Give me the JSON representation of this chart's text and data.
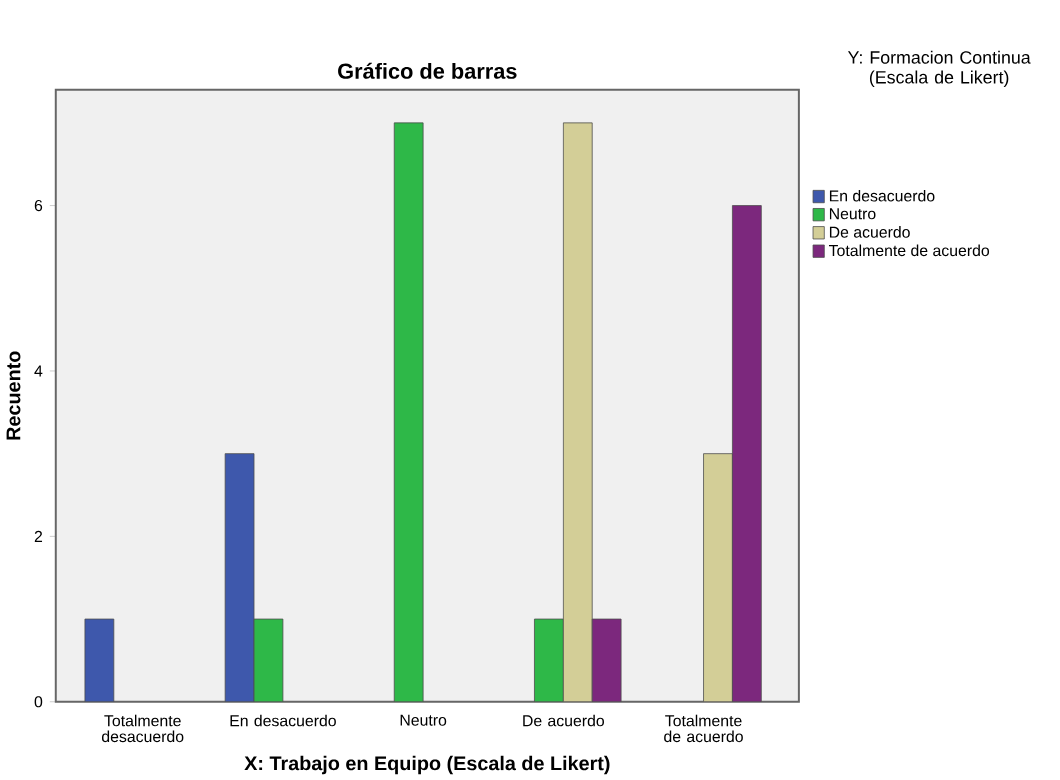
{
  "chart_data": {
    "type": "bar",
    "title": "Gráfico de barras",
    "xlabel": "X: Trabajo en Equipo (Escala de Likert)",
    "ylabel": "Recuento",
    "legend_title": "Y: Formacion Continua (Escala de Likert)",
    "categories": [
      "Totalmente desacuerdo",
      "En desacuerdo",
      "Neutro",
      "De acuerdo",
      "Totalmente de acuerdo"
    ],
    "series": [
      {
        "name": "En desacuerdo",
        "color": "#3e58ac",
        "values": [
          1,
          3,
          null,
          null,
          null
        ]
      },
      {
        "name": "Neutro",
        "color": "#2eb848",
        "values": [
          null,
          1,
          7,
          1,
          null
        ]
      },
      {
        "name": "De acuerdo",
        "color": "#d3ce97",
        "values": [
          null,
          null,
          null,
          7,
          3
        ]
      },
      {
        "name": "Totalmente de acuerdo",
        "color": "#7c287d",
        "values": [
          null,
          null,
          null,
          1,
          6
        ]
      }
    ],
    "ylim": [
      0,
      7.4
    ],
    "yticks": [
      0,
      2,
      4,
      6
    ],
    "grid": false,
    "legend": "top right"
  }
}
